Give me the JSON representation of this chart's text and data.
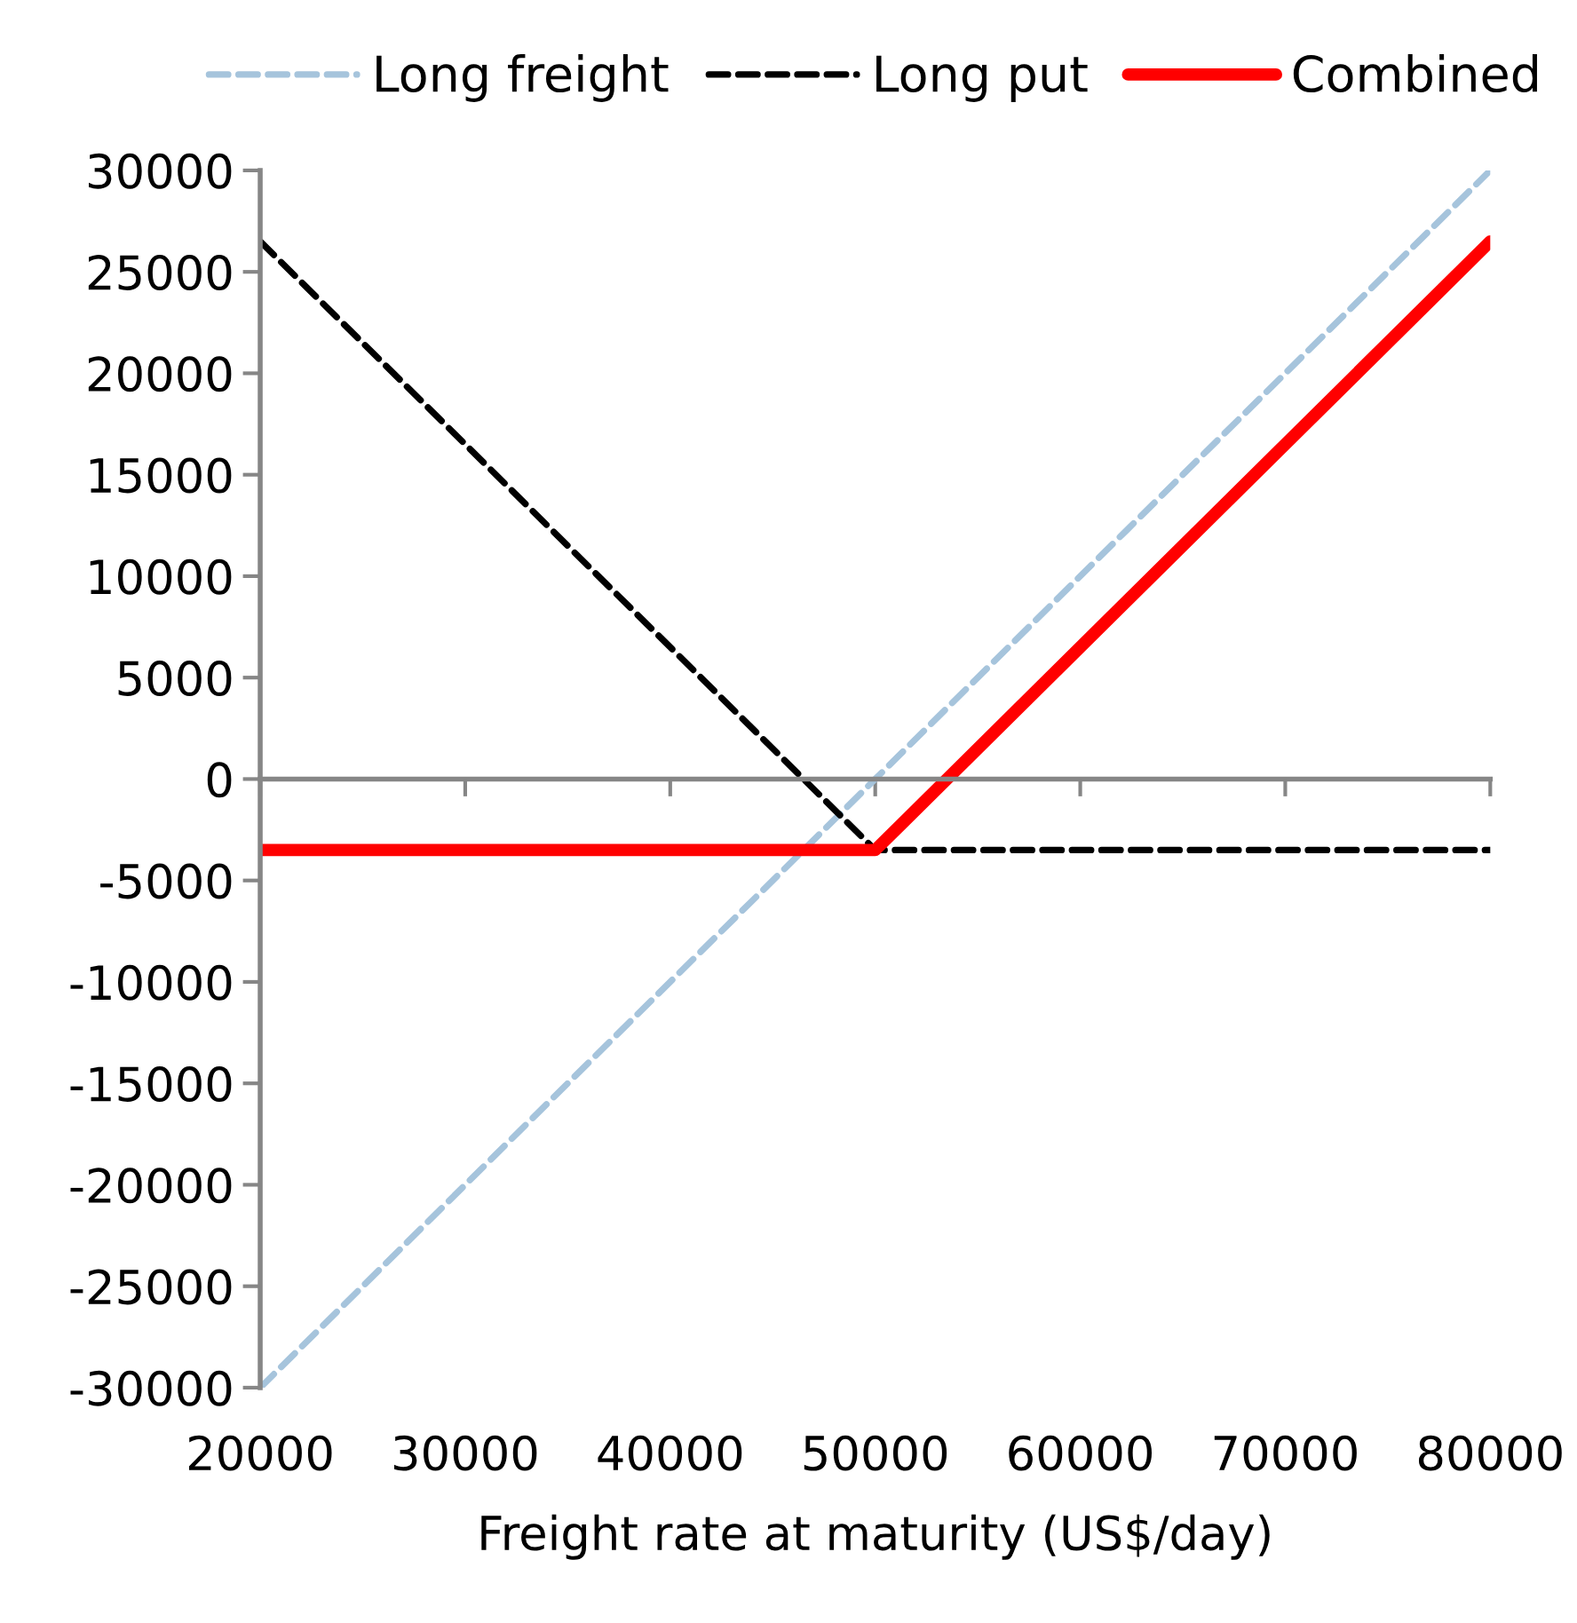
{
  "chart_data": {
    "type": "line",
    "xlabel": "Freight rate at maturity (US$/day)",
    "x": [
      20000,
      50000,
      80000
    ],
    "series": [
      {
        "name": "Long freight",
        "color": "#a6c4dc",
        "line_style": "dashed",
        "values": [
          -30000,
          0,
          30000
        ]
      },
      {
        "name": "Long put",
        "color": "#000000",
        "line_style": "dashed",
        "values": [
          26500,
          -3500,
          -3500
        ]
      },
      {
        "name": "Combined",
        "color": "#ff0000",
        "line_style": "solid",
        "values": [
          -3500,
          -3500,
          26500
        ]
      }
    ],
    "xlim": [
      20000,
      80000
    ],
    "xticks": [
      20000,
      30000,
      40000,
      50000,
      60000,
      70000,
      80000
    ],
    "ylim": [
      -30000,
      30000
    ],
    "yticks": [
      -30000,
      -25000,
      -20000,
      -15000,
      -10000,
      -5000,
      0,
      5000,
      10000,
      15000,
      20000,
      25000,
      30000
    ],
    "legend": "top",
    "marker": "none"
  }
}
